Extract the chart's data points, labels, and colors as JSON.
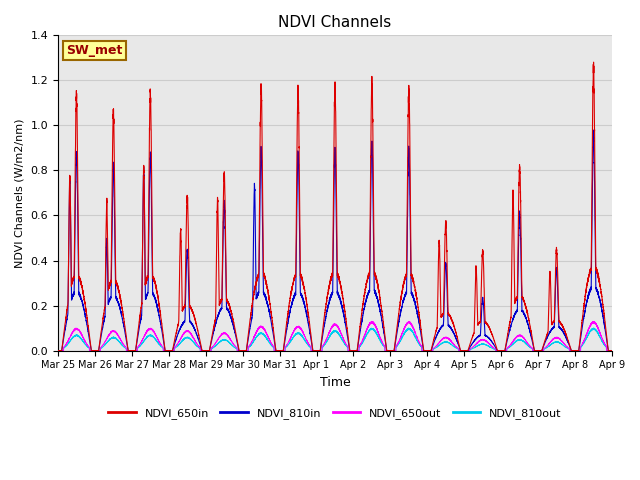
{
  "title": "NDVI Channels",
  "xlabel": "Time",
  "ylabel": "NDVI Channels (W/m2/nm)",
  "ylim": [
    0,
    1.4
  ],
  "annotation_text": "SW_met",
  "annotation_bg": "#FFFF99",
  "annotation_border": "#996600",
  "annotation_text_color": "#990000",
  "grid_color": "#cccccc",
  "plot_bg": "#e8e8e8",
  "series": {
    "NDVI_650in": {
      "color": "#DD0000",
      "lw": 0.8,
      "zorder": 4
    },
    "NDVI_810in": {
      "color": "#0000CC",
      "lw": 0.8,
      "zorder": 3
    },
    "NDVI_650out": {
      "color": "#FF00FF",
      "lw": 0.7,
      "zorder": 2
    },
    "NDVI_810out": {
      "color": "#00CCEE",
      "lw": 0.7,
      "zorder": 1
    }
  },
  "x_tick_labels": [
    "Mar 25",
    "Mar 26",
    "Mar 27",
    "Mar 28",
    "Mar 29",
    "Mar 30",
    "Mar 31",
    "Apr 1",
    "Apr 2",
    "Apr 3",
    "Apr 4",
    "Apr 5",
    "Apr 6",
    "Apr 7",
    "Apr 8",
    "Apr 9"
  ],
  "days": 16,
  "points_per_day": 500,
  "seed": 42,
  "day_peaks": {
    "NDVI_650in": [
      1.16,
      1.08,
      1.17,
      0.7,
      0.8,
      1.2,
      1.19,
      1.2,
      1.22,
      1.19,
      0.58,
      0.45,
      0.84,
      0.46,
      1.29,
      0.0
    ],
    "NDVI_810in": [
      0.9,
      0.84,
      0.9,
      0.46,
      0.67,
      0.91,
      0.9,
      0.91,
      0.94,
      0.91,
      0.4,
      0.24,
      0.63,
      0.37,
      0.98,
      0.0
    ],
    "NDVI_650out": [
      0.1,
      0.09,
      0.1,
      0.09,
      0.08,
      0.11,
      0.11,
      0.12,
      0.13,
      0.13,
      0.06,
      0.05,
      0.07,
      0.06,
      0.13,
      0.0
    ],
    "NDVI_810out": [
      0.07,
      0.06,
      0.07,
      0.06,
      0.05,
      0.08,
      0.08,
      0.09,
      0.1,
      0.1,
      0.04,
      0.03,
      0.05,
      0.04,
      0.1,
      0.0
    ]
  },
  "day_secondary_peaks": {
    "NDVI_650in": [
      0.79,
      0.68,
      0.83,
      0.55,
      0.69,
      0.0,
      0.0,
      0.0,
      0.0,
      0.0,
      0.5,
      0.38,
      0.72,
      0.36,
      0.0,
      0.0
    ],
    "NDVI_810in": [
      0.78,
      0.5,
      0.82,
      0.0,
      0.0,
      0.75,
      0.0,
      0.0,
      0.0,
      0.0,
      0.0,
      0.0,
      0.0,
      0.0,
      0.0,
      0.0
    ]
  }
}
